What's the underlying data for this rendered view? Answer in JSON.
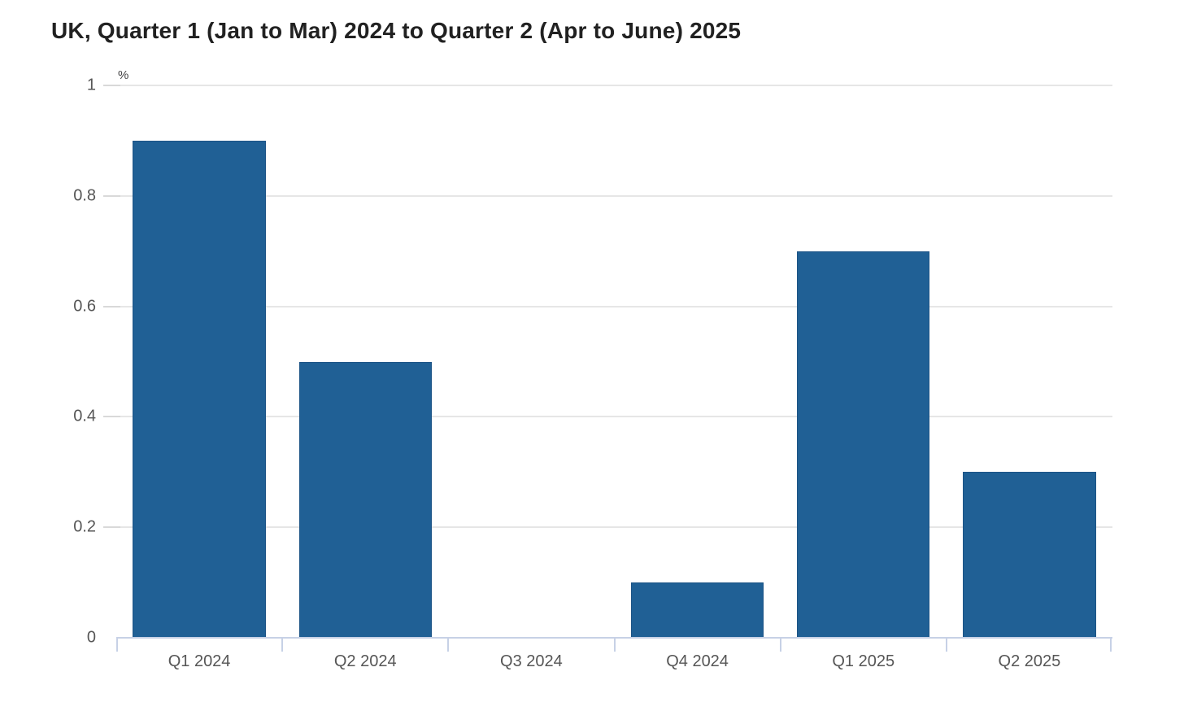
{
  "title": "UK, Quarter 1 (Jan to Mar) 2024 to Quarter 2 (Apr to June) 2025",
  "chart_data": {
    "type": "bar",
    "title": "UK, Quarter 1 (Jan to Mar) 2024 to Quarter 2 (Apr to June) 2025",
    "unit_label": "%",
    "categories": [
      "Q1 2024",
      "Q2 2024",
      "Q3 2024",
      "Q4 2024",
      "Q1 2025",
      "Q2 2025"
    ],
    "values": [
      0.9,
      0.5,
      0,
      0.1,
      0.7,
      0.3
    ],
    "xlabel": "",
    "ylabel": "%",
    "ylim": [
      0,
      1
    ],
    "yticks": [
      0,
      0.2,
      0.4,
      0.6,
      0.8,
      1
    ],
    "grid": true,
    "legend": false,
    "bar_width_ratio": 0.8,
    "colors": {
      "bar_fill": "#206095",
      "bar_border": "#1d5486",
      "gridline": "#e6e6e6",
      "axis_line": "#c7d1e6",
      "ytick_mark": "#d9d9d9",
      "tick_label": "#565656",
      "title_text": "#212121",
      "unit_text": "#414042",
      "background": "#ffffff"
    }
  }
}
